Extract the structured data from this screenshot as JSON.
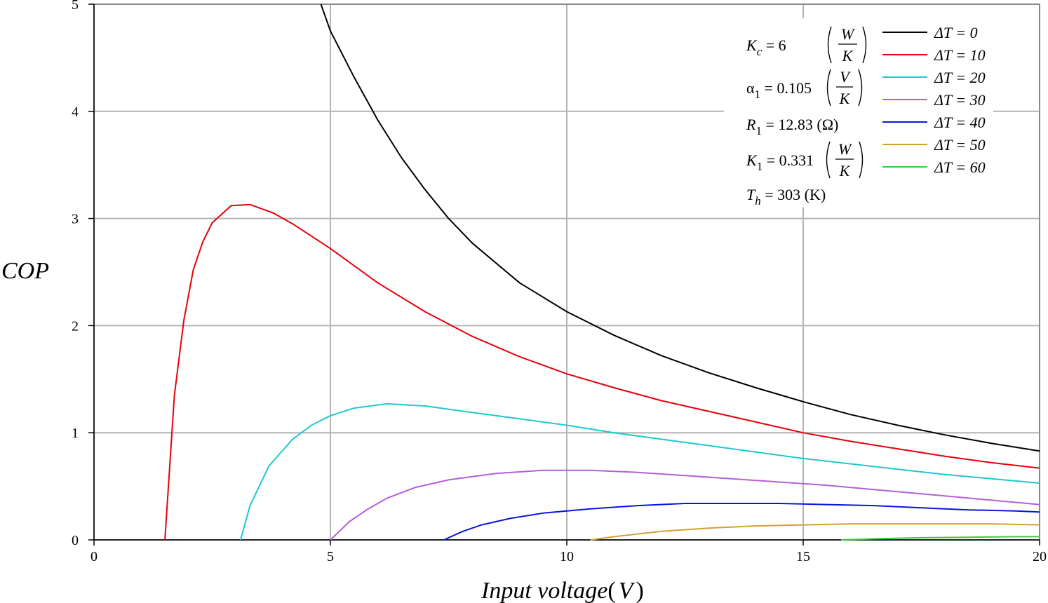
{
  "chart_data": {
    "type": "line",
    "title": "",
    "xlabel": "Input voltage",
    "xlabel_unit": "V",
    "ylabel": "COP",
    "xlim": [
      0,
      20
    ],
    "ylim": [
      0,
      5
    ],
    "xticks": [
      0,
      5,
      10,
      15,
      20
    ],
    "yticks": [
      0,
      1,
      2,
      3,
      4,
      5
    ],
    "grid": true,
    "legend_position": "top-right",
    "series": [
      {
        "name": "ΔT = 0",
        "color": "#000000",
        "x": [
          4.8,
          5.0,
          5.5,
          6.0,
          6.5,
          7.0,
          7.5,
          8.0,
          9.0,
          10.0,
          11.0,
          12.0,
          13.0,
          14.0,
          15.0,
          16.0,
          17.0,
          18.0,
          19.0,
          20.0
        ],
        "y": [
          5.0,
          4.75,
          4.32,
          3.92,
          3.57,
          3.27,
          3.0,
          2.77,
          2.4,
          2.13,
          1.91,
          1.72,
          1.56,
          1.42,
          1.29,
          1.17,
          1.07,
          0.98,
          0.9,
          0.83
        ]
      },
      {
        "name": "ΔT = 10",
        "color": "#e8000b",
        "x": [
          1.5,
          1.7,
          1.9,
          2.1,
          2.3,
          2.5,
          2.9,
          3.3,
          3.8,
          4.2,
          5.0,
          6.0,
          7.0,
          8.0,
          9.0,
          10.0,
          11.0,
          12.0,
          13.0,
          14.0,
          15.0,
          16.0,
          17.0,
          18.0,
          19.0,
          20.0
        ],
        "y": [
          0.0,
          1.35,
          2.05,
          2.52,
          2.78,
          2.96,
          3.12,
          3.13,
          3.05,
          2.95,
          2.72,
          2.4,
          2.13,
          1.9,
          1.71,
          1.55,
          1.42,
          1.3,
          1.2,
          1.1,
          1.0,
          0.92,
          0.85,
          0.78,
          0.72,
          0.67
        ]
      },
      {
        "name": "ΔT = 20",
        "color": "#1fc8d0",
        "x": [
          3.1,
          3.3,
          3.7,
          4.2,
          4.6,
          5.0,
          5.5,
          6.2,
          7.0,
          8.0,
          9.0,
          10.0,
          11.0,
          12.0,
          13.0,
          14.0,
          15.0,
          16.0,
          17.0,
          18.0,
          19.0,
          20.0
        ],
        "y": [
          0.0,
          0.32,
          0.69,
          0.94,
          1.07,
          1.16,
          1.23,
          1.27,
          1.25,
          1.19,
          1.13,
          1.07,
          1.0,
          0.94,
          0.88,
          0.82,
          0.76,
          0.71,
          0.66,
          0.61,
          0.57,
          0.53
        ]
      },
      {
        "name": "ΔT = 30",
        "color": "#b460d8",
        "x": [
          5.0,
          5.4,
          5.8,
          6.2,
          6.8,
          7.5,
          8.5,
          9.5,
          10.5,
          11.5,
          12.5,
          13.5,
          14.5,
          15.5,
          16.5,
          17.5,
          18.5,
          19.5,
          20.0
        ],
        "y": [
          0.0,
          0.17,
          0.29,
          0.39,
          0.49,
          0.56,
          0.62,
          0.65,
          0.65,
          0.63,
          0.6,
          0.57,
          0.54,
          0.51,
          0.47,
          0.43,
          0.39,
          0.35,
          0.33
        ]
      },
      {
        "name": "ΔT = 40",
        "color": "#0a16e0",
        "x": [
          7.4,
          7.8,
          8.2,
          8.8,
          9.5,
          10.5,
          11.5,
          12.5,
          13.5,
          14.5,
          15.5,
          16.5,
          17.5,
          18.5,
          19.5,
          20.0
        ],
        "y": [
          0.0,
          0.08,
          0.14,
          0.2,
          0.25,
          0.29,
          0.32,
          0.34,
          0.34,
          0.34,
          0.33,
          0.32,
          0.3,
          0.28,
          0.27,
          0.26
        ]
      },
      {
        "name": "ΔT = 50",
        "color": "#d4a037",
        "x": [
          10.5,
          11.0,
          12.0,
          13.0,
          14.0,
          15.0,
          16.0,
          17.0,
          18.0,
          19.0,
          20.0
        ],
        "y": [
          0.0,
          0.03,
          0.08,
          0.11,
          0.13,
          0.14,
          0.15,
          0.15,
          0.15,
          0.15,
          0.14
        ]
      },
      {
        "name": "ΔT = 60",
        "color": "#3cc840",
        "x": [
          15.8,
          16.5,
          17.5,
          18.5,
          19.5,
          20.0
        ],
        "y": [
          0.0,
          0.01,
          0.02,
          0.025,
          0.03,
          0.03
        ]
      }
    ],
    "annotations": {
      "Kc": {
        "symbol": "K",
        "sub": "c",
        "value": "6",
        "unit_num": "W",
        "unit_den": "K"
      },
      "alpha1": {
        "symbol": "α",
        "sub": "1",
        "value": "0.105",
        "unit_num": "V",
        "unit_den": "K"
      },
      "R1": {
        "symbol": "R",
        "sub": "1",
        "value": "12.83",
        "unit": "(Ω)"
      },
      "K1": {
        "symbol": "K",
        "sub": "1",
        "value": "0.331",
        "unit_num": "W",
        "unit_den": "K"
      },
      "Th": {
        "symbol": "T",
        "sub": "h",
        "value": "303",
        "unit": "(K)"
      }
    }
  }
}
